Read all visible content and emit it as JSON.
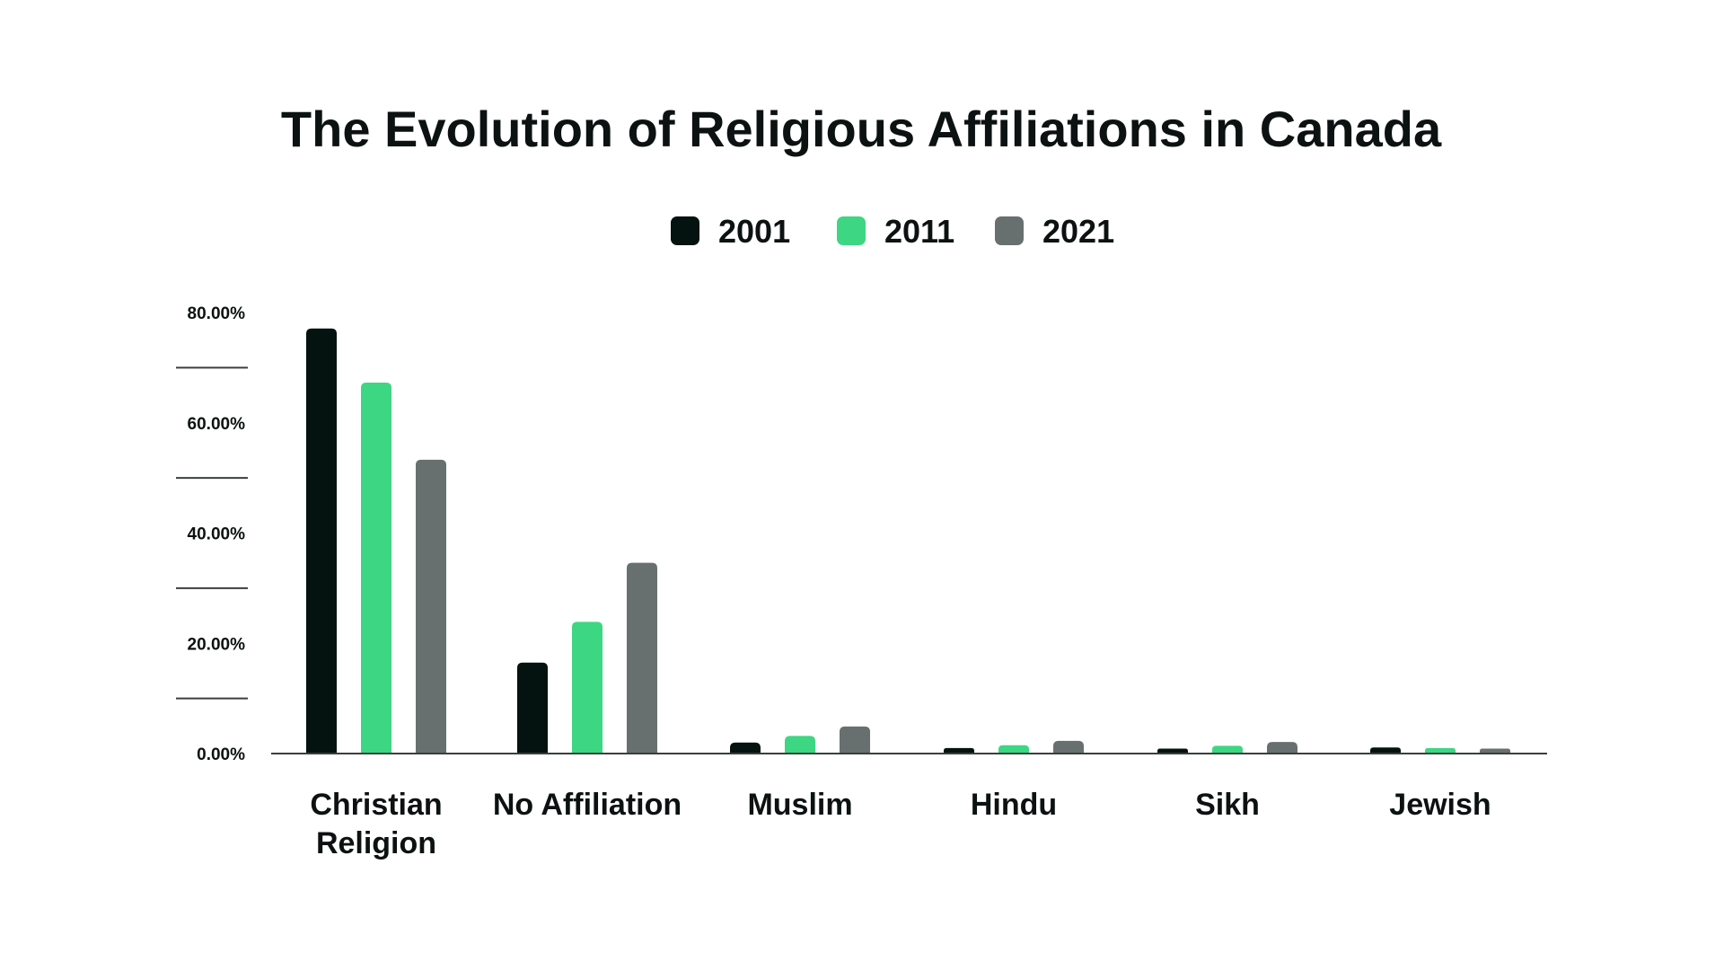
{
  "chart_data": {
    "type": "bar",
    "title": "The Evolution of Religious Affiliations in Canada",
    "xlabel": "",
    "ylabel": "",
    "categories": [
      [
        "Christian",
        "Religion"
      ],
      [
        "No Affiliation"
      ],
      [
        "Muslim"
      ],
      [
        "Hindu"
      ],
      [
        "Sikh"
      ],
      [
        "Jewish"
      ]
    ],
    "series": [
      {
        "name": "2001",
        "color": "#041210",
        "values": [
          77.1,
          16.5,
          2.0,
          1.0,
          0.9,
          1.1
        ]
      },
      {
        "name": "2011",
        "color": "#3dd683",
        "values": [
          67.3,
          23.9,
          3.2,
          1.5,
          1.4,
          1.0
        ]
      },
      {
        "name": "2021",
        "color": "#68706f",
        "values": [
          53.3,
          34.6,
          4.9,
          2.3,
          2.1,
          0.9
        ]
      }
    ],
    "yticks": [
      "0.00%",
      "20.00%",
      "40.00%",
      "60.00%",
      "80.00%"
    ],
    "ytick_values": [
      0,
      20,
      40,
      60,
      80
    ],
    "ylim": [
      0,
      80
    ],
    "legend": "top-center",
    "grid": false
  }
}
